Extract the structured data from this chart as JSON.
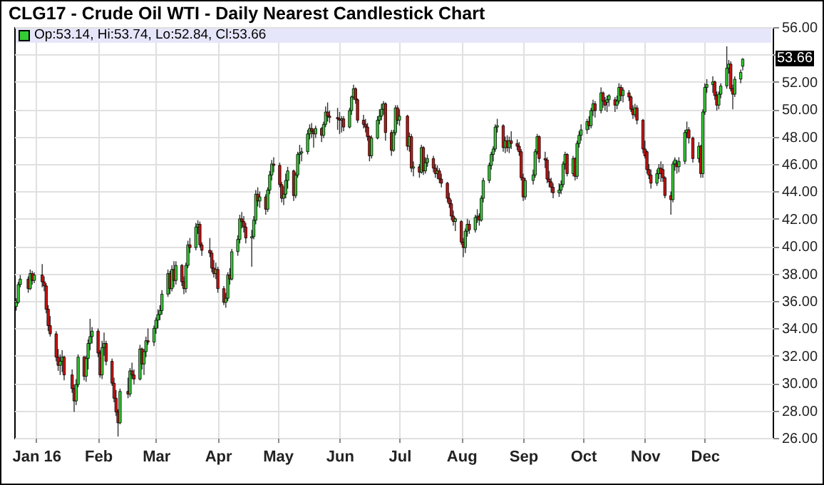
{
  "chart_data": {
    "type": "candlestick",
    "title": "CLG17 - Crude Oil WTI - Daily Nearest Candlestick Chart",
    "annotations": [
      "Op:53.14, Hi:53.74, Lo:52.84, Cl:53.66",
      "53.66"
    ],
    "x": [
      "2015-12-22",
      "2015-12-23",
      "2015-12-24",
      "2015-12-28",
      "2015-12-29",
      "2015-12-30",
      "2015-12-31",
      "2016-01-04",
      "2016-01-05",
      "2016-01-06",
      "2016-01-07",
      "2016-01-08",
      "2016-01-11",
      "2016-01-12",
      "2016-01-13",
      "2016-01-14",
      "2016-01-15",
      "2016-01-19",
      "2016-01-20",
      "2016-01-21",
      "2016-01-22",
      "2016-01-25",
      "2016-01-26",
      "2016-01-27",
      "2016-01-28",
      "2016-01-29",
      "2016-02-01",
      "2016-02-02",
      "2016-02-03",
      "2016-02-04",
      "2016-02-05",
      "2016-02-08",
      "2016-02-09",
      "2016-02-10",
      "2016-02-11",
      "2016-02-12",
      "2016-02-16",
      "2016-02-17",
      "2016-02-18",
      "2016-02-19",
      "2016-02-22",
      "2016-02-23",
      "2016-02-24",
      "2016-02-25",
      "2016-02-26",
      "2016-02-29",
      "2016-03-01",
      "2016-03-02",
      "2016-03-03",
      "2016-03-04",
      "2016-03-07",
      "2016-03-08",
      "2016-03-09",
      "2016-03-10",
      "2016-03-11",
      "2016-03-14",
      "2016-03-15",
      "2016-03-16",
      "2016-03-17",
      "2016-03-18",
      "2016-03-21",
      "2016-03-22",
      "2016-03-23",
      "2016-03-24",
      "2016-03-28",
      "2016-03-29",
      "2016-03-30",
      "2016-03-31",
      "2016-04-01",
      "2016-04-04",
      "2016-04-05",
      "2016-04-06",
      "2016-04-07",
      "2016-04-08",
      "2016-04-11",
      "2016-04-12",
      "2016-04-13",
      "2016-04-14",
      "2016-04-15",
      "2016-04-18",
      "2016-04-19",
      "2016-04-20",
      "2016-04-21",
      "2016-04-22",
      "2016-04-25",
      "2016-04-26",
      "2016-04-27",
      "2016-04-28",
      "2016-04-29",
      "2016-05-02",
      "2016-05-03",
      "2016-05-04",
      "2016-05-05",
      "2016-05-06",
      "2016-05-09",
      "2016-05-10",
      "2016-05-11",
      "2016-05-12",
      "2016-05-13",
      "2016-05-16",
      "2016-05-17",
      "2016-05-18",
      "2016-05-19",
      "2016-05-20",
      "2016-05-23",
      "2016-05-24",
      "2016-05-25",
      "2016-05-26",
      "2016-05-27",
      "2016-05-31",
      "2016-06-01",
      "2016-06-02",
      "2016-06-03",
      "2016-06-06",
      "2016-06-07",
      "2016-06-08",
      "2016-06-09",
      "2016-06-10",
      "2016-06-13",
      "2016-06-14",
      "2016-06-15",
      "2016-06-16",
      "2016-06-17",
      "2016-06-20",
      "2016-06-21",
      "2016-06-22",
      "2016-06-23",
      "2016-06-24",
      "2016-06-27",
      "2016-06-28",
      "2016-06-29",
      "2016-06-30",
      "2016-07-01",
      "2016-07-05",
      "2016-07-06",
      "2016-07-07",
      "2016-07-08",
      "2016-07-11",
      "2016-07-12",
      "2016-07-13",
      "2016-07-14",
      "2016-07-15",
      "2016-07-18",
      "2016-07-19",
      "2016-07-20",
      "2016-07-21",
      "2016-07-22",
      "2016-07-25",
      "2016-07-26",
      "2016-07-27",
      "2016-07-28",
      "2016-07-29",
      "2016-08-01",
      "2016-08-02",
      "2016-08-03",
      "2016-08-04",
      "2016-08-05",
      "2016-08-08",
      "2016-08-09",
      "2016-08-10",
      "2016-08-11",
      "2016-08-12",
      "2016-08-15",
      "2016-08-16",
      "2016-08-17",
      "2016-08-18",
      "2016-08-19",
      "2016-08-22",
      "2016-08-23",
      "2016-08-24",
      "2016-08-25",
      "2016-08-26",
      "2016-08-29",
      "2016-08-30",
      "2016-08-31",
      "2016-09-01",
      "2016-09-02",
      "2016-09-06",
      "2016-09-07",
      "2016-09-08",
      "2016-09-09",
      "2016-09-12",
      "2016-09-13",
      "2016-09-14",
      "2016-09-15",
      "2016-09-16",
      "2016-09-19",
      "2016-09-20",
      "2016-09-21",
      "2016-09-22",
      "2016-09-23",
      "2016-09-26",
      "2016-09-27",
      "2016-09-28",
      "2016-09-29",
      "2016-09-30",
      "2016-10-03",
      "2016-10-04",
      "2016-10-05",
      "2016-10-06",
      "2016-10-07",
      "2016-10-10",
      "2016-10-11",
      "2016-10-12",
      "2016-10-13",
      "2016-10-14",
      "2016-10-17",
      "2016-10-18",
      "2016-10-19",
      "2016-10-20",
      "2016-10-21",
      "2016-10-24",
      "2016-10-25",
      "2016-10-26",
      "2016-10-27",
      "2016-10-28",
      "2016-10-31",
      "2016-11-01",
      "2016-11-02",
      "2016-11-03",
      "2016-11-04",
      "2016-11-07",
      "2016-11-08",
      "2016-11-09",
      "2016-11-10",
      "2016-11-11",
      "2016-11-14",
      "2016-11-15",
      "2016-11-16",
      "2016-11-17",
      "2016-11-18",
      "2016-11-21",
      "2016-11-22",
      "2016-11-23",
      "2016-11-25",
      "2016-11-28",
      "2016-11-29",
      "2016-11-30",
      "2016-12-01",
      "2016-12-02",
      "2016-12-05",
      "2016-12-06",
      "2016-12-07",
      "2016-12-08",
      "2016-12-09",
      "2016-12-12",
      "2016-12-13",
      "2016-12-14",
      "2016-12-15",
      "2016-12-16",
      "2016-12-19",
      "2016-12-20"
    ],
    "ohlc": [
      [
        35.6,
        36.2,
        35.3,
        35.9
      ],
      [
        35.9,
        37.4,
        35.8,
        37.2
      ],
      [
        37.2,
        37.9,
        37.0,
        37.6
      ],
      [
        37.6,
        37.8,
        36.6,
        36.9
      ],
      [
        36.9,
        38.3,
        36.8,
        38.0
      ],
      [
        38.0,
        38.2,
        37.2,
        37.5
      ],
      [
        37.5,
        38.1,
        37.3,
        37.9
      ],
      [
        37.9,
        38.7,
        37.0,
        37.4
      ],
      [
        37.4,
        37.8,
        36.7,
        37.1
      ],
      [
        37.1,
        37.3,
        35.1,
        35.4
      ],
      [
        35.4,
        35.7,
        33.8,
        34.2
      ],
      [
        34.2,
        34.9,
        33.4,
        33.6
      ],
      [
        33.6,
        33.8,
        31.6,
        31.9
      ],
      [
        31.9,
        32.5,
        30.9,
        31.3
      ],
      [
        31.3,
        32.1,
        30.6,
        31.6
      ],
      [
        31.6,
        32.4,
        30.8,
        31.9
      ],
      [
        31.9,
        32.0,
        30.2,
        30.6
      ],
      [
        30.6,
        31.0,
        29.3,
        29.6
      ],
      [
        29.6,
        29.9,
        27.9,
        28.7
      ],
      [
        28.7,
        30.3,
        28.4,
        29.9
      ],
      [
        29.9,
        32.1,
        29.7,
        31.9
      ],
      [
        31.9,
        32.0,
        30.2,
        30.5
      ],
      [
        30.5,
        32.0,
        30.1,
        31.8
      ],
      [
        31.8,
        33.2,
        31.0,
        32.9
      ],
      [
        32.9,
        34.7,
        32.4,
        33.4
      ],
      [
        33.4,
        34.1,
        32.9,
        33.8
      ],
      [
        33.8,
        34.0,
        31.9,
        32.2
      ],
      [
        32.2,
        32.4,
        30.4,
        30.6
      ],
      [
        30.6,
        33.1,
        30.3,
        32.6
      ],
      [
        32.6,
        33.7,
        32.0,
        32.9
      ],
      [
        32.9,
        33.1,
        31.3,
        31.6
      ],
      [
        31.6,
        31.8,
        29.8,
        30.0
      ],
      [
        30.0,
        30.4,
        28.6,
        28.9
      ],
      [
        28.9,
        29.5,
        27.6,
        27.9
      ],
      [
        27.9,
        28.1,
        26.1,
        27.1
      ],
      [
        27.1,
        29.6,
        27.0,
        29.4
      ],
      [
        29.4,
        30.4,
        28.9,
        29.2
      ],
      [
        29.2,
        31.1,
        29.0,
        30.9
      ],
      [
        30.9,
        31.5,
        30.3,
        30.6
      ],
      [
        30.6,
        31.0,
        29.9,
        30.3
      ],
      [
        30.3,
        32.8,
        30.2,
        32.5
      ],
      [
        32.5,
        32.6,
        31.0,
        31.4
      ],
      [
        31.4,
        32.5,
        30.6,
        32.3
      ],
      [
        32.3,
        33.4,
        31.9,
        33.1
      ],
      [
        33.1,
        34.0,
        32.8,
        33.0
      ],
      [
        33.0,
        34.2,
        32.7,
        34.0
      ],
      [
        34.0,
        34.8,
        33.6,
        34.6
      ],
      [
        34.6,
        35.4,
        34.0,
        35.0
      ],
      [
        35.0,
        35.7,
        34.6,
        35.3
      ],
      [
        35.3,
        36.8,
        35.0,
        36.5
      ],
      [
        36.5,
        38.3,
        36.3,
        38.0
      ],
      [
        38.0,
        38.2,
        36.5,
        36.9
      ],
      [
        36.9,
        38.6,
        36.7,
        38.3
      ],
      [
        38.3,
        38.9,
        37.0,
        37.5
      ],
      [
        37.5,
        38.9,
        37.2,
        38.6
      ],
      [
        38.6,
        38.7,
        37.1,
        37.4
      ],
      [
        37.4,
        37.8,
        36.5,
        36.9
      ],
      [
        36.9,
        38.8,
        36.6,
        38.6
      ],
      [
        38.6,
        40.4,
        38.4,
        40.1
      ],
      [
        40.1,
        40.6,
        39.5,
        39.9
      ],
      [
        39.9,
        41.7,
        39.7,
        41.4
      ],
      [
        41.4,
        41.9,
        40.9,
        41.6
      ],
      [
        41.6,
        41.8,
        39.9,
        40.1
      ],
      [
        40.1,
        40.3,
        39.3,
        39.7
      ],
      [
        39.7,
        40.6,
        39.2,
        39.5
      ],
      [
        39.5,
        39.7,
        38.1,
        38.4
      ],
      [
        38.4,
        39.0,
        37.7,
        38.0
      ],
      [
        38.0,
        38.8,
        37.6,
        38.3
      ],
      [
        38.3,
        38.5,
        36.6,
        36.9
      ],
      [
        36.9,
        37.1,
        35.7,
        35.9
      ],
      [
        35.9,
        36.6,
        35.5,
        36.2
      ],
      [
        36.2,
        38.1,
        36.0,
        37.9
      ],
      [
        37.9,
        38.4,
        37.2,
        37.6
      ],
      [
        37.6,
        39.8,
        37.5,
        39.6
      ],
      [
        39.6,
        40.8,
        39.3,
        40.5
      ],
      [
        40.5,
        42.3,
        40.2,
        42.0
      ],
      [
        42.0,
        42.5,
        41.3,
        41.8
      ],
      [
        41.8,
        42.2,
        41.0,
        41.4
      ],
      [
        41.4,
        41.7,
        40.2,
        40.6
      ],
      [
        40.6,
        41.2,
        38.5,
        40.7
      ],
      [
        40.7,
        42.2,
        40.5,
        41.9
      ],
      [
        41.9,
        44.1,
        41.6,
        43.8
      ],
      [
        43.8,
        44.3,
        42.9,
        43.3
      ],
      [
        43.3,
        44.0,
        42.8,
        43.6
      ],
      [
        43.6,
        43.8,
        42.3,
        42.7
      ],
      [
        42.7,
        44.3,
        42.5,
        44.1
      ],
      [
        44.1,
        45.5,
        43.8,
        45.2
      ],
      [
        45.2,
        46.3,
        44.8,
        46.0
      ],
      [
        46.0,
        46.5,
        45.4,
        45.9
      ],
      [
        45.9,
        46.1,
        44.3,
        44.5
      ],
      [
        44.5,
        44.7,
        43.2,
        43.5
      ],
      [
        43.5,
        44.4,
        43.0,
        43.8
      ],
      [
        43.8,
        45.3,
        43.5,
        44.8
      ],
      [
        44.8,
        45.8,
        44.2,
        45.5
      ],
      [
        45.5,
        45.6,
        43.3,
        43.7
      ],
      [
        43.7,
        45.4,
        43.5,
        45.2
      ],
      [
        45.2,
        46.9,
        45.0,
        46.7
      ],
      [
        46.7,
        47.4,
        46.0,
        46.8
      ],
      [
        46.8,
        47.2,
        46.2,
        46.9
      ],
      [
        46.9,
        48.5,
        46.7,
        48.2
      ],
      [
        48.2,
        48.9,
        47.8,
        48.6
      ],
      [
        48.6,
        49.0,
        47.9,
        48.4
      ],
      [
        48.4,
        48.6,
        47.2,
        48.2
      ],
      [
        48.2,
        48.8,
        47.9,
        48.6
      ],
      [
        48.6,
        48.7,
        47.6,
        48.1
      ],
      [
        48.1,
        49.1,
        47.9,
        48.9
      ],
      [
        48.9,
        50.2,
        48.7,
        49.8
      ],
      [
        49.8,
        50.5,
        49.1,
        49.5
      ],
      [
        49.5,
        49.9,
        49.0,
        49.4
      ],
      [
        49.4,
        50.1,
        48.5,
        49.3
      ],
      [
        49.3,
        49.8,
        48.2,
        49.2
      ],
      [
        49.2,
        49.5,
        48.3,
        49.3
      ],
      [
        49.3,
        49.5,
        48.4,
        48.7
      ],
      [
        48.7,
        50.1,
        48.6,
        49.9
      ],
      [
        49.9,
        51.0,
        49.6,
        50.9
      ],
      [
        50.9,
        51.8,
        50.7,
        51.5
      ],
      [
        51.5,
        51.6,
        50.4,
        50.7
      ],
      [
        50.7,
        50.8,
        49.0,
        49.2
      ],
      [
        49.2,
        49.6,
        48.6,
        48.9
      ],
      [
        48.9,
        49.3,
        48.3,
        48.7
      ],
      [
        48.7,
        49.0,
        47.7,
        48.0
      ],
      [
        48.0,
        48.1,
        46.2,
        46.6
      ],
      [
        46.6,
        48.1,
        46.4,
        47.9
      ],
      [
        47.9,
        49.5,
        47.8,
        49.2
      ],
      [
        49.2,
        50.0,
        48.9,
        49.5
      ],
      [
        49.5,
        50.4,
        49.2,
        50.0
      ],
      [
        50.0,
        50.6,
        49.6,
        50.4
      ],
      [
        50.4,
        50.5,
        47.7,
        48.3
      ],
      [
        48.3,
        48.5,
        46.6,
        47.0
      ],
      [
        47.0,
        48.5,
        46.9,
        48.3
      ],
      [
        48.3,
        50.3,
        48.1,
        50.1
      ],
      [
        50.1,
        50.3,
        48.9,
        49.2
      ],
      [
        49.2,
        50.0,
        48.8,
        49.5
      ],
      [
        49.5,
        49.6,
        47.0,
        47.3
      ],
      [
        47.3,
        48.3,
        46.9,
        48.0
      ],
      [
        48.0,
        48.2,
        45.4,
        45.7
      ],
      [
        45.7,
        46.2,
        45.1,
        45.8
      ],
      [
        45.8,
        46.0,
        45.0,
        45.4
      ],
      [
        45.4,
        47.4,
        45.3,
        47.2
      ],
      [
        47.2,
        47.3,
        45.2,
        45.5
      ],
      [
        45.5,
        46.5,
        45.3,
        46.1
      ],
      [
        46.1,
        46.7,
        45.8,
        46.4
      ],
      [
        46.4,
        46.6,
        45.4,
        45.7
      ],
      [
        45.7,
        46.0,
        45.0,
        45.3
      ],
      [
        45.3,
        45.9,
        44.9,
        45.5
      ],
      [
        45.5,
        45.7,
        44.6,
        44.9
      ],
      [
        44.9,
        45.3,
        44.3,
        44.6
      ],
      [
        44.6,
        44.7,
        43.2,
        43.5
      ],
      [
        43.5,
        43.9,
        42.8,
        43.1
      ],
      [
        43.1,
        43.4,
        41.9,
        42.2
      ],
      [
        42.2,
        42.6,
        41.5,
        41.8
      ],
      [
        41.8,
        42.1,
        41.1,
        42.0
      ],
      [
        41.8,
        41.9,
        40.1,
        40.3
      ],
      [
        40.3,
        40.6,
        39.2,
        39.9
      ],
      [
        39.9,
        41.3,
        39.5,
        41.1
      ],
      [
        41.1,
        42.0,
        40.7,
        41.6
      ],
      [
        41.6,
        41.9,
        40.9,
        41.2
      ],
      [
        41.2,
        42.3,
        41.0,
        42.1
      ],
      [
        42.1,
        42.7,
        41.7,
        42.2
      ],
      [
        42.2,
        42.4,
        41.5,
        41.9
      ],
      [
        41.9,
        43.7,
        41.8,
        43.5
      ],
      [
        43.5,
        45.0,
        43.2,
        44.8
      ],
      [
        44.8,
        46.1,
        44.6,
        45.9
      ],
      [
        45.9,
        46.9,
        45.6,
        46.7
      ],
      [
        46.7,
        47.3,
        46.2,
        47.1
      ],
      [
        47.1,
        48.9,
        46.9,
        48.7
      ],
      [
        48.7,
        49.3,
        48.3,
        48.8
      ],
      [
        48.8,
        48.9,
        46.9,
        47.2
      ],
      [
        47.2,
        48.0,
        46.8,
        47.7
      ],
      [
        47.7,
        48.1,
        46.9,
        47.2
      ],
      [
        47.2,
        48.0,
        46.8,
        47.7
      ],
      [
        47.7,
        48.4,
        47.1,
        47.5
      ],
      [
        47.5,
        47.8,
        47.0,
        47.3
      ],
      [
        47.3,
        47.6,
        46.6,
        46.9
      ],
      [
        46.9,
        47.1,
        44.8,
        45.0
      ],
      [
        45.0,
        45.3,
        43.3,
        43.6
      ],
      [
        43.6,
        45.0,
        43.4,
        44.8
      ],
      [
        44.8,
        45.6,
        44.5,
        45.2
      ],
      [
        45.2,
        47.1,
        45.0,
        46.9
      ],
      [
        46.9,
        48.2,
        46.7,
        48.0
      ],
      [
        48.0,
        48.1,
        46.1,
        46.4
      ],
      [
        46.4,
        46.9,
        45.7,
        46.3
      ],
      [
        46.3,
        46.5,
        44.6,
        44.9
      ],
      [
        44.9,
        45.5,
        44.3,
        44.7
      ],
      [
        44.7,
        45.0,
        43.9,
        44.3
      ],
      [
        44.3,
        44.6,
        43.5,
        43.9
      ],
      [
        43.9,
        44.6,
        43.6,
        44.1
      ],
      [
        44.1,
        44.8,
        43.8,
        44.5
      ],
      [
        44.5,
        46.2,
        44.3,
        46.0
      ],
      [
        46.0,
        46.9,
        45.6,
        46.7
      ],
      [
        46.7,
        46.8,
        45.1,
        45.3
      ],
      [
        45.3,
        46.6,
        45.1,
        46.4
      ],
      [
        46.4,
        46.5,
        44.8,
        45.1
      ],
      [
        45.1,
        47.7,
        44.9,
        47.5
      ],
      [
        47.5,
        48.4,
        47.2,
        48.1
      ],
      [
        48.1,
        48.9,
        47.7,
        48.5
      ],
      [
        48.5,
        49.3,
        48.2,
        49.1
      ],
      [
        49.1,
        49.5,
        48.5,
        48.8
      ],
      [
        48.8,
        50.1,
        48.6,
        49.9
      ],
      [
        49.9,
        50.7,
        49.5,
        50.4
      ],
      [
        50.4,
        50.6,
        49.4,
        49.9
      ],
      [
        49.9,
        51.6,
        49.7,
        51.2
      ],
      [
        51.2,
        51.3,
        50.1,
        50.6
      ],
      [
        50.6,
        50.9,
        49.9,
        50.3
      ],
      [
        50.5,
        51.0,
        49.8,
        50.7
      ],
      [
        50.7,
        51.1,
        50.2,
        51.0
      ],
      [
        50.7,
        50.9,
        49.8,
        50.3
      ],
      [
        50.3,
        51.0,
        50.0,
        50.6
      ],
      [
        50.6,
        51.9,
        50.4,
        51.6
      ],
      [
        51.6,
        51.8,
        50.6,
        51.0
      ],
      [
        51.0,
        51.6,
        50.5,
        51.4
      ],
      [
        51.2,
        51.4,
        50.6,
        50.9
      ],
      [
        50.9,
        51.0,
        49.8,
        50.0
      ],
      [
        50.0,
        50.3,
        49.3,
        49.6
      ],
      [
        49.6,
        50.4,
        49.4,
        50.1
      ],
      [
        50.1,
        50.3,
        48.9,
        49.2
      ],
      [
        49.2,
        49.3,
        46.8,
        47.1
      ],
      [
        47.1,
        47.7,
        46.4,
        46.6
      ],
      [
        46.9,
        47.0,
        45.3,
        45.6
      ],
      [
        45.6,
        46.0,
        44.9,
        45.2
      ],
      [
        45.2,
        45.6,
        44.2,
        44.6
      ],
      [
        44.6,
        45.6,
        44.4,
        45.3
      ],
      [
        45.3,
        46.0,
        44.9,
        45.7
      ],
      [
        45.7,
        46.2,
        44.7,
        45.3
      ],
      [
        45.6,
        46.0,
        44.7,
        45.0
      ],
      [
        45.0,
        45.1,
        43.5,
        43.7
      ],
      [
        43.7,
        44.0,
        42.3,
        43.4
      ],
      [
        43.4,
        46.2,
        43.2,
        46.0
      ],
      [
        46.0,
        46.5,
        45.5,
        46.3
      ],
      [
        46.0,
        46.3,
        45.3,
        45.8
      ],
      [
        45.8,
        46.5,
        45.4,
        46.2
      ],
      [
        46.2,
        48.5,
        46.0,
        48.3
      ],
      [
        48.3,
        49.1,
        47.9,
        48.5
      ],
      [
        48.5,
        48.7,
        47.5,
        47.9
      ],
      [
        47.9,
        48.0,
        46.1,
        46.4
      ],
      [
        46.4,
        47.6,
        46.1,
        47.3
      ],
      [
        47.3,
        47.4,
        45.0,
        45.3
      ],
      [
        45.3,
        50.0,
        45.0,
        49.8
      ],
      [
        49.8,
        51.9,
        49.6,
        51.6
      ],
      [
        51.6,
        52.2,
        51.2,
        51.8
      ],
      [
        51.8,
        52.4,
        51.2,
        52.0
      ],
      [
        52.0,
        52.1,
        50.7,
        51.0
      ],
      [
        51.0,
        51.3,
        49.9,
        50.3
      ],
      [
        50.3,
        51.3,
        50.0,
        51.1
      ],
      [
        51.1,
        51.9,
        50.8,
        51.7
      ],
      [
        51.7,
        54.6,
        51.5,
        53.0
      ],
      [
        53.0,
        53.6,
        52.6,
        53.3
      ],
      [
        53.3,
        53.5,
        51.3,
        51.5
      ],
      [
        51.5,
        51.8,
        50.0,
        51.1
      ],
      [
        51.1,
        52.4,
        50.9,
        52.2
      ],
      [
        52.2,
        52.9,
        51.9,
        52.7
      ],
      [
        53.14,
        53.74,
        52.84,
        53.66
      ]
    ],
    "colors": [
      "#33cc33",
      "#33cc33",
      "#33cc33",
      "#cc1111",
      "#33cc33",
      "#cc1111",
      "#33cc33",
      "#cc1111",
      "#cc1111",
      "#cc1111",
      "#cc1111",
      "#cc1111",
      "#cc1111",
      "#cc1111",
      "#33cc33",
      "#33cc33",
      "#cc1111",
      "#cc1111",
      "#cc1111",
      "#33cc33",
      "#33cc33",
      "#cc1111",
      "#33cc33",
      "#33cc33",
      "#33cc33",
      "#33cc33",
      "#cc1111",
      "#cc1111",
      "#33cc33",
      "#33cc33",
      "#cc1111",
      "#cc1111",
      "#cc1111",
      "#cc1111",
      "#cc1111",
      "#33cc33",
      "#cc1111",
      "#33cc33",
      "#cc1111",
      "#cc1111",
      "#33cc33",
      "#cc1111",
      "#33cc33",
      "#33cc33",
      "#cc1111",
      "#33cc33",
      "#33cc33",
      "#33cc33",
      "#33cc33",
      "#33cc33",
      "#33cc33",
      "#cc1111",
      "#33cc33",
      "#cc1111",
      "#33cc33",
      "#cc1111",
      "#cc1111",
      "#33cc33",
      "#33cc33",
      "#cc1111",
      "#33cc33",
      "#33cc33",
      "#cc1111",
      "#cc1111",
      "#cc1111",
      "#cc1111",
      "#cc1111",
      "#33cc33",
      "#cc1111",
      "#cc1111",
      "#33cc33",
      "#33cc33",
      "#cc1111",
      "#33cc33",
      "#33cc33",
      "#33cc33",
      "#cc1111",
      "#cc1111",
      "#cc1111",
      "#33cc33",
      "#33cc33",
      "#33cc33",
      "#cc1111",
      "#33cc33",
      "#cc1111",
      "#33cc33",
      "#33cc33",
      "#33cc33",
      "#cc1111",
      "#cc1111",
      "#cc1111",
      "#33cc33",
      "#33cc33",
      "#33cc33",
      "#cc1111",
      "#33cc33",
      "#33cc33",
      "#33cc33",
      "#33cc33",
      "#33cc33",
      "#33cc33",
      "#cc1111",
      "#cc1111",
      "#33cc33",
      "#cc1111",
      "#33cc33",
      "#33cc33",
      "#cc1111",
      "#cc1111",
      "#cc1111",
      "#cc1111",
      "#33cc33",
      "#cc1111",
      "#33cc33",
      "#33cc33",
      "#33cc33",
      "#cc1111",
      "#cc1111",
      "#cc1111",
      "#cc1111",
      "#cc1111",
      "#cc1111",
      "#33cc33",
      "#33cc33",
      "#33cc33",
      "#33cc33",
      "#33cc33",
      "#cc1111",
      "#cc1111",
      "#33cc33",
      "#33cc33",
      "#cc1111",
      "#33cc33",
      "#cc1111",
      "#33cc33",
      "#cc1111",
      "#33cc33",
      "#cc1111",
      "#33cc33",
      "#cc1111",
      "#33cc33",
      "#33cc33",
      "#cc1111",
      "#cc1111",
      "#33cc33",
      "#cc1111",
      "#cc1111",
      "#cc1111",
      "#cc1111",
      "#cc1111",
      "#cc1111",
      "#33cc33",
      "#cc1111",
      "#cc1111",
      "#33cc33",
      "#33cc33",
      "#cc1111",
      "#33cc33",
      "#33cc33",
      "#cc1111",
      "#33cc33",
      "#33cc33",
      "#33cc33",
      "#33cc33",
      "#33cc33",
      "#33cc33",
      "#33cc33",
      "#cc1111",
      "#33cc33",
      "#cc1111",
      "#33cc33",
      "#cc1111",
      "#cc1111",
      "#cc1111",
      "#cc1111",
      "#cc1111",
      "#33cc33",
      "#33cc33",
      "#33cc33",
      "#33cc33",
      "#cc1111",
      "#cc1111",
      "#cc1111",
      "#cc1111",
      "#cc1111",
      "#cc1111",
      "#33cc33",
      "#33cc33",
      "#33cc33",
      "#33cc33",
      "#cc1111",
      "#33cc33",
      "#cc1111",
      "#33cc33",
      "#33cc33",
      "#33cc33",
      "#33cc33",
      "#cc1111",
      "#33cc33",
      "#33cc33",
      "#cc1111",
      "#33cc33",
      "#cc1111",
      "#cc1111",
      "#33cc33",
      "#33cc33",
      "#cc1111",
      "#33cc33",
      "#33cc33",
      "#cc1111",
      "#33cc33",
      "#cc1111",
      "#cc1111",
      "#cc1111",
      "#33cc33",
      "#cc1111",
      "#cc1111",
      "#cc1111",
      "#cc1111",
      "#cc1111",
      "#cc1111",
      "#33cc33",
      "#33cc33",
      "#cc1111",
      "#cc1111",
      "#cc1111",
      "#cc1111",
      "#33cc33",
      "#33cc33",
      "#cc1111",
      "#33cc33",
      "#33cc33",
      "#33cc33",
      "#cc1111",
      "#cc1111",
      "#33cc33",
      "#cc1111",
      "#33cc33",
      "#33cc33",
      "#33cc33",
      "#33cc33",
      "#cc1111",
      "#cc1111",
      "#33cc33",
      "#33cc33",
      "#33cc33",
      "#33cc33",
      "#cc1111",
      "#cc1111",
      "#33cc33",
      "#33cc33",
      "#33cc33"
    ],
    "xlim": [
      "2015-12-21",
      "2017-01-04"
    ],
    "xticks": [
      {
        "value": "2016-01-01",
        "label": "Jan 16"
      },
      {
        "value": "2016-02-01",
        "label": "Feb"
      },
      {
        "value": "2016-03-01",
        "label": "Mar"
      },
      {
        "value": "2016-04-01",
        "label": "Apr"
      },
      {
        "value": "2016-05-01",
        "label": "May"
      },
      {
        "value": "2016-06-01",
        "label": "Jun"
      },
      {
        "value": "2016-07-01",
        "label": "Jul"
      },
      {
        "value": "2016-08-01",
        "label": "Aug"
      },
      {
        "value": "2016-09-01",
        "label": "Sep"
      },
      {
        "value": "2016-10-01",
        "label": "Oct"
      },
      {
        "value": "2016-11-01",
        "label": "Nov"
      },
      {
        "value": "2016-12-01",
        "label": "Dec"
      }
    ],
    "ylim": [
      26,
      56
    ],
    "yticks": [
      {
        "value": 26,
        "label": "26.00"
      },
      {
        "value": 28,
        "label": "28.00"
      },
      {
        "value": 30,
        "label": "30.00"
      },
      {
        "value": 32,
        "label": "32.00"
      },
      {
        "value": 34,
        "label": "34.00"
      },
      {
        "value": 36,
        "label": "36.00"
      },
      {
        "value": 38,
        "label": "38.00"
      },
      {
        "value": 40,
        "label": "40.00"
      },
      {
        "value": 42,
        "label": "42.00"
      },
      {
        "value": 44,
        "label": "44.00"
      },
      {
        "value": 46,
        "label": "46.00"
      },
      {
        "value": 48,
        "label": "48.00"
      },
      {
        "value": 50,
        "label": "50.00"
      },
      {
        "value": 52,
        "label": "52.00"
      },
      {
        "value": 54,
        "label": null
      },
      {
        "value": 56,
        "label": "56.00"
      }
    ],
    "grid": true
  }
}
